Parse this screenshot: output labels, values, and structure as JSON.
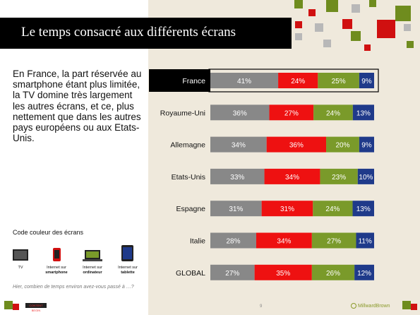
{
  "slide": {
    "title": "Le temps consacré aux différents écrans",
    "intro": "En France, la part réservée au smartphone étant plus limitée, la TV domine très largement les autres écrans, et ce, plus nettement que dans les autres pays européens ou aux Etats-Unis.",
    "question": "Hier, combien de temps environ avez-vous passé à …?",
    "page_number": "9",
    "brand": "MillwardBrown",
    "badge": "CONTENT BEGIN"
  },
  "legend": {
    "title": "Code couleur des écrans",
    "items": [
      {
        "line1": "TV",
        "line2": "",
        "icon": "tv-icon",
        "color": "#888888"
      },
      {
        "line1": "Internet sur",
        "line2": "smartphone",
        "icon": "smartphone-icon",
        "color": "#ee1111"
      },
      {
        "line1": "Internet sur",
        "line2": "ordinateur",
        "icon": "laptop-icon",
        "color": "#7a9a2a"
      },
      {
        "line1": "Internet sur",
        "line2": "tablette",
        "icon": "tablet-icon",
        "color": "#1f3a8a"
      }
    ]
  },
  "chart_data": {
    "type": "bar",
    "orientation": "horizontal",
    "stacked": true,
    "normalized": true,
    "categories": [
      "France",
      "Royaume-Uni",
      "Allemagne",
      "Etats-Unis",
      "Espagne",
      "Italie",
      "GLOBAL"
    ],
    "highlight": "France",
    "series": [
      {
        "name": "TV",
        "color": "#888888",
        "values": [
          41,
          36,
          34,
          33,
          31,
          28,
          27
        ],
        "labels": [
          "41%",
          "36%",
          "34%",
          "33%",
          "31%",
          "28%",
          "27%"
        ]
      },
      {
        "name": "Internet sur smartphone",
        "color": "#ee1111",
        "values": [
          24,
          27,
          36,
          34,
          31,
          34,
          35
        ],
        "labels": [
          "24%",
          "27%",
          "36%",
          "34%",
          "31%",
          "34%",
          "35%"
        ]
      },
      {
        "name": "Internet sur ordinateur",
        "color": "#7a9a2a",
        "values": [
          25,
          24,
          20,
          23,
          24,
          27,
          26
        ],
        "labels": [
          "25%",
          "24%",
          "20%",
          "23%",
          "24%",
          "27%",
          "26%"
        ]
      },
      {
        "name": "Internet sur tablette",
        "color": "#1f3a8a",
        "values": [
          9,
          13,
          9,
          10,
          13,
          11,
          12
        ],
        "labels": [
          "9%",
          "13%",
          "9%",
          "10%",
          "13%",
          "11%",
          "12%"
        ]
      }
    ],
    "grid": false,
    "legend": "left-bottom"
  }
}
